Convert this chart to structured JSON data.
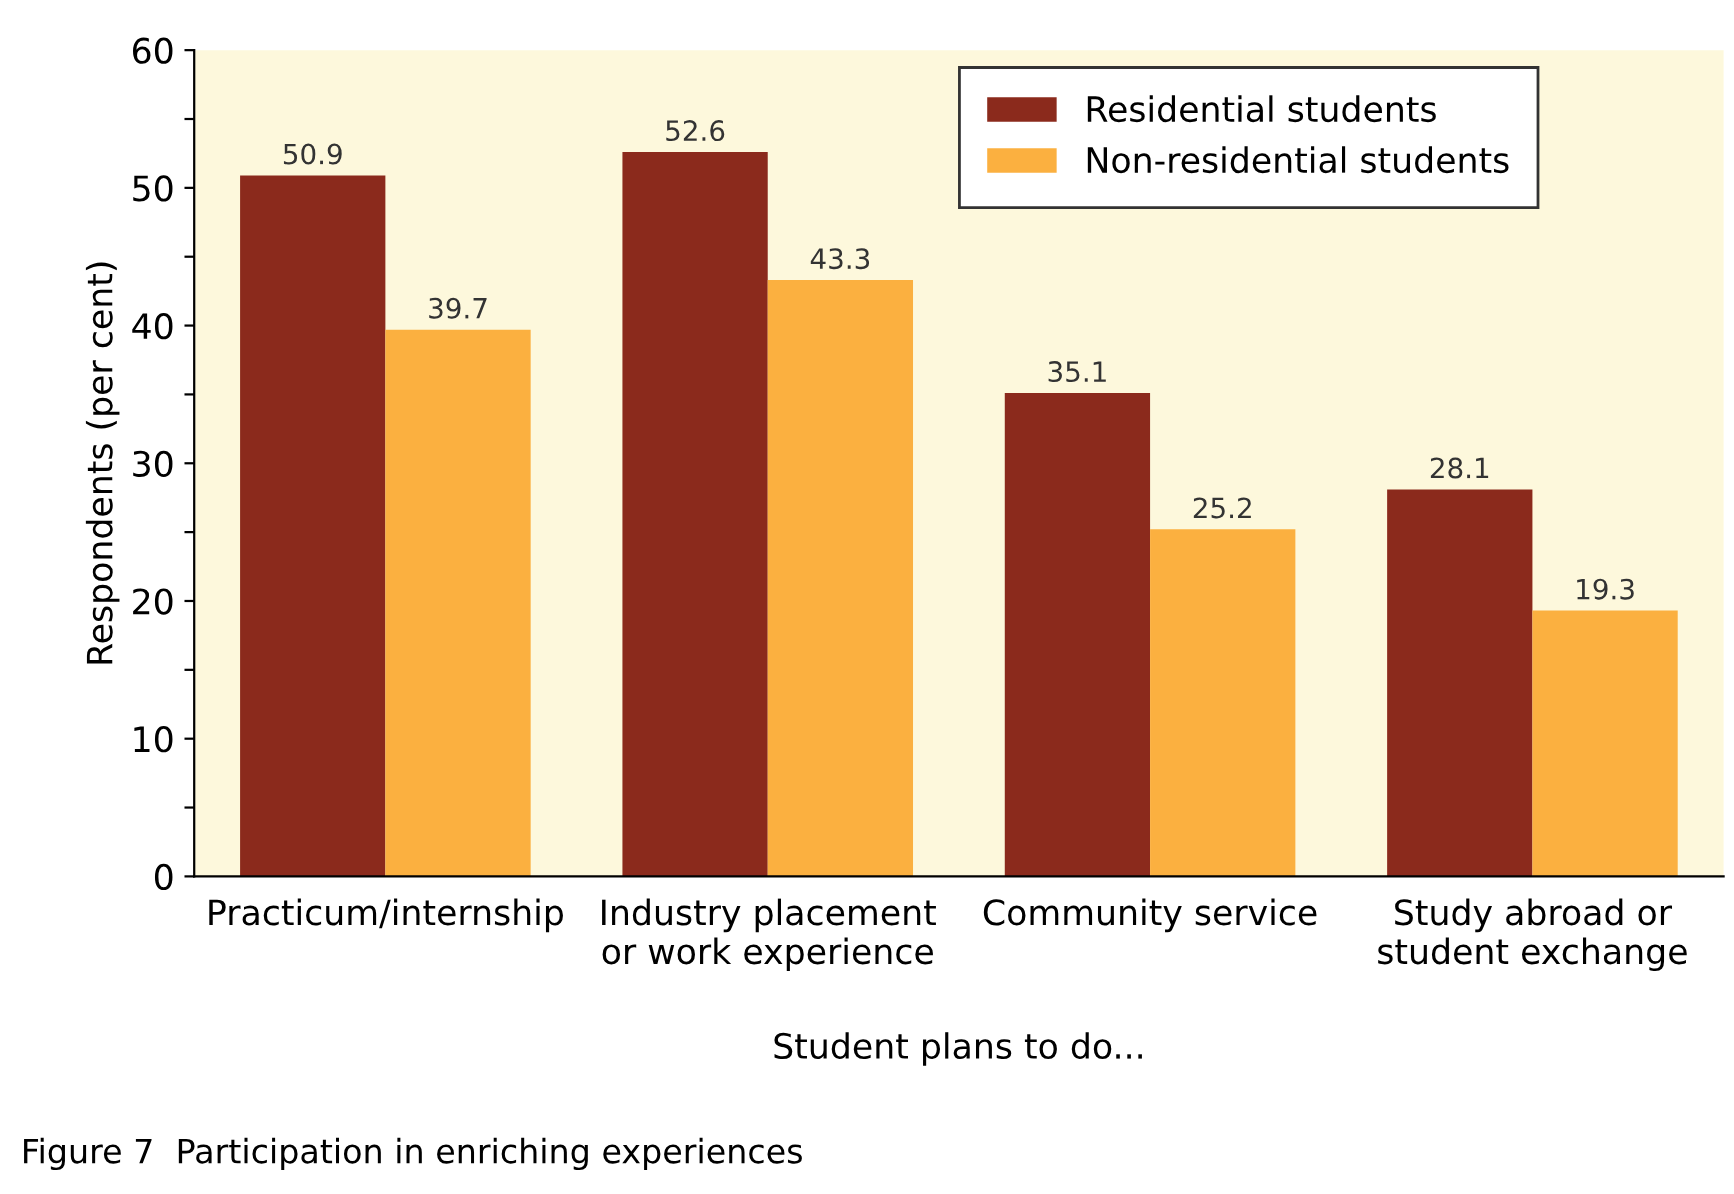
{
  "chart_data": {
    "type": "bar",
    "xlabel": "Student plans to do...",
    "ylabel": "Respondents (per cent)",
    "categories": [
      "Practicum/internship",
      "Industry placement\nor work experience",
      "Community service",
      "Study abroad or\nstudent exchange"
    ],
    "series": [
      {
        "name": "Residential students",
        "color": "#8b2a1c",
        "values": [
          50.9,
          52.6,
          35.1,
          28.1
        ]
      },
      {
        "name": "Non-residential students",
        "color": "#fbb040",
        "values": [
          39.7,
          43.3,
          25.2,
          19.3
        ]
      }
    ],
    "ylim": [
      0,
      60
    ],
    "yticks": [
      0,
      {
        "value": 5,
        "label": null
      },
      10,
      {
        "value": 15,
        "label": null
      },
      20,
      {
        "value": 25,
        "label": null
      },
      30,
      {
        "value": 35,
        "label": null
      },
      40,
      {
        "value": 45,
        "label": null
      },
      50,
      {
        "value": 55,
        "label": null
      },
      60
    ],
    "data_labels": true,
    "legend": "top right",
    "grid": false,
    "annotations": [
      "Figure 7  Participation in enriching experiences"
    ]
  }
}
